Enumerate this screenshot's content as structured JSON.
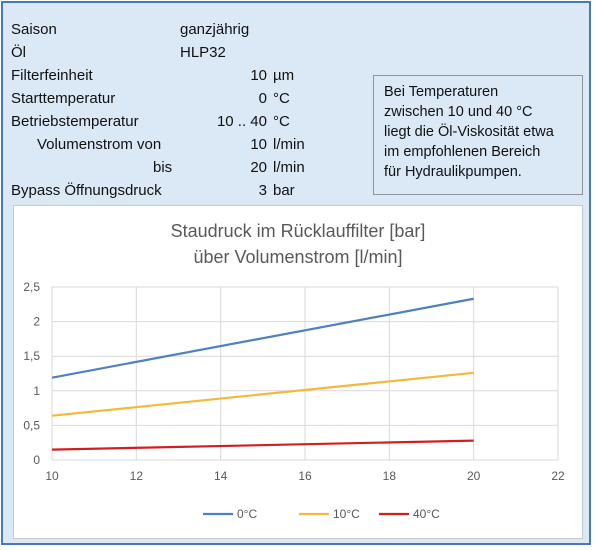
{
  "specs": [
    {
      "label": "Saison",
      "value": "ganzjährig",
      "unit": ""
    },
    {
      "label": "Öl",
      "value": "HLP32",
      "unit": ""
    },
    {
      "label": "Filterfeinheit",
      "value": "10",
      "unit": "µm"
    },
    {
      "label": "Starttemperatur",
      "value": "0",
      "unit": "°C"
    },
    {
      "label": "Betriebstemperatur",
      "value": "10 .. 40",
      "unit": "°C"
    },
    {
      "label": "Volumenstrom von",
      "value": "10",
      "unit": "l/min"
    },
    {
      "label": "bis",
      "value": "20",
      "unit": "l/min"
    },
    {
      "label": "Bypass Öffnungsdruck",
      "value": "3",
      "unit": "bar"
    }
  ],
  "note": {
    "lines": [
      "Bei Temperaturen",
      "zwischen 10 und 40 °C",
      "liegt die Öl-Viskosität etwa",
      "im empfohlenen Bereich",
      "für Hydraulikpumpen."
    ]
  },
  "chart_data": {
    "type": "line",
    "title": [
      "Staudruck im Rücklauffilter [bar]",
      "über Volumenstrom [l/min]"
    ],
    "xlabel": "",
    "ylabel": "",
    "xlim": [
      10,
      22
    ],
    "ylim": [
      0,
      2.5
    ],
    "x_ticks": [
      "10",
      "12",
      "14",
      "16",
      "18",
      "20",
      "22"
    ],
    "y_ticks": [
      "0",
      "0,5",
      "1",
      "1,5",
      "2",
      "2,5"
    ],
    "grid": true,
    "legend_position": "bottom",
    "series": [
      {
        "name": "0°C",
        "color": "#4f81bd",
        "x": [
          10,
          20
        ],
        "y": [
          1.19,
          2.33
        ]
      },
      {
        "name": "10°C",
        "color": "#f2b93b",
        "x": [
          10,
          20
        ],
        "y": [
          0.64,
          1.26
        ]
      },
      {
        "name": "40°C",
        "color": "#d11f1f",
        "x": [
          10,
          20
        ],
        "y": [
          0.15,
          0.28
        ]
      }
    ]
  }
}
